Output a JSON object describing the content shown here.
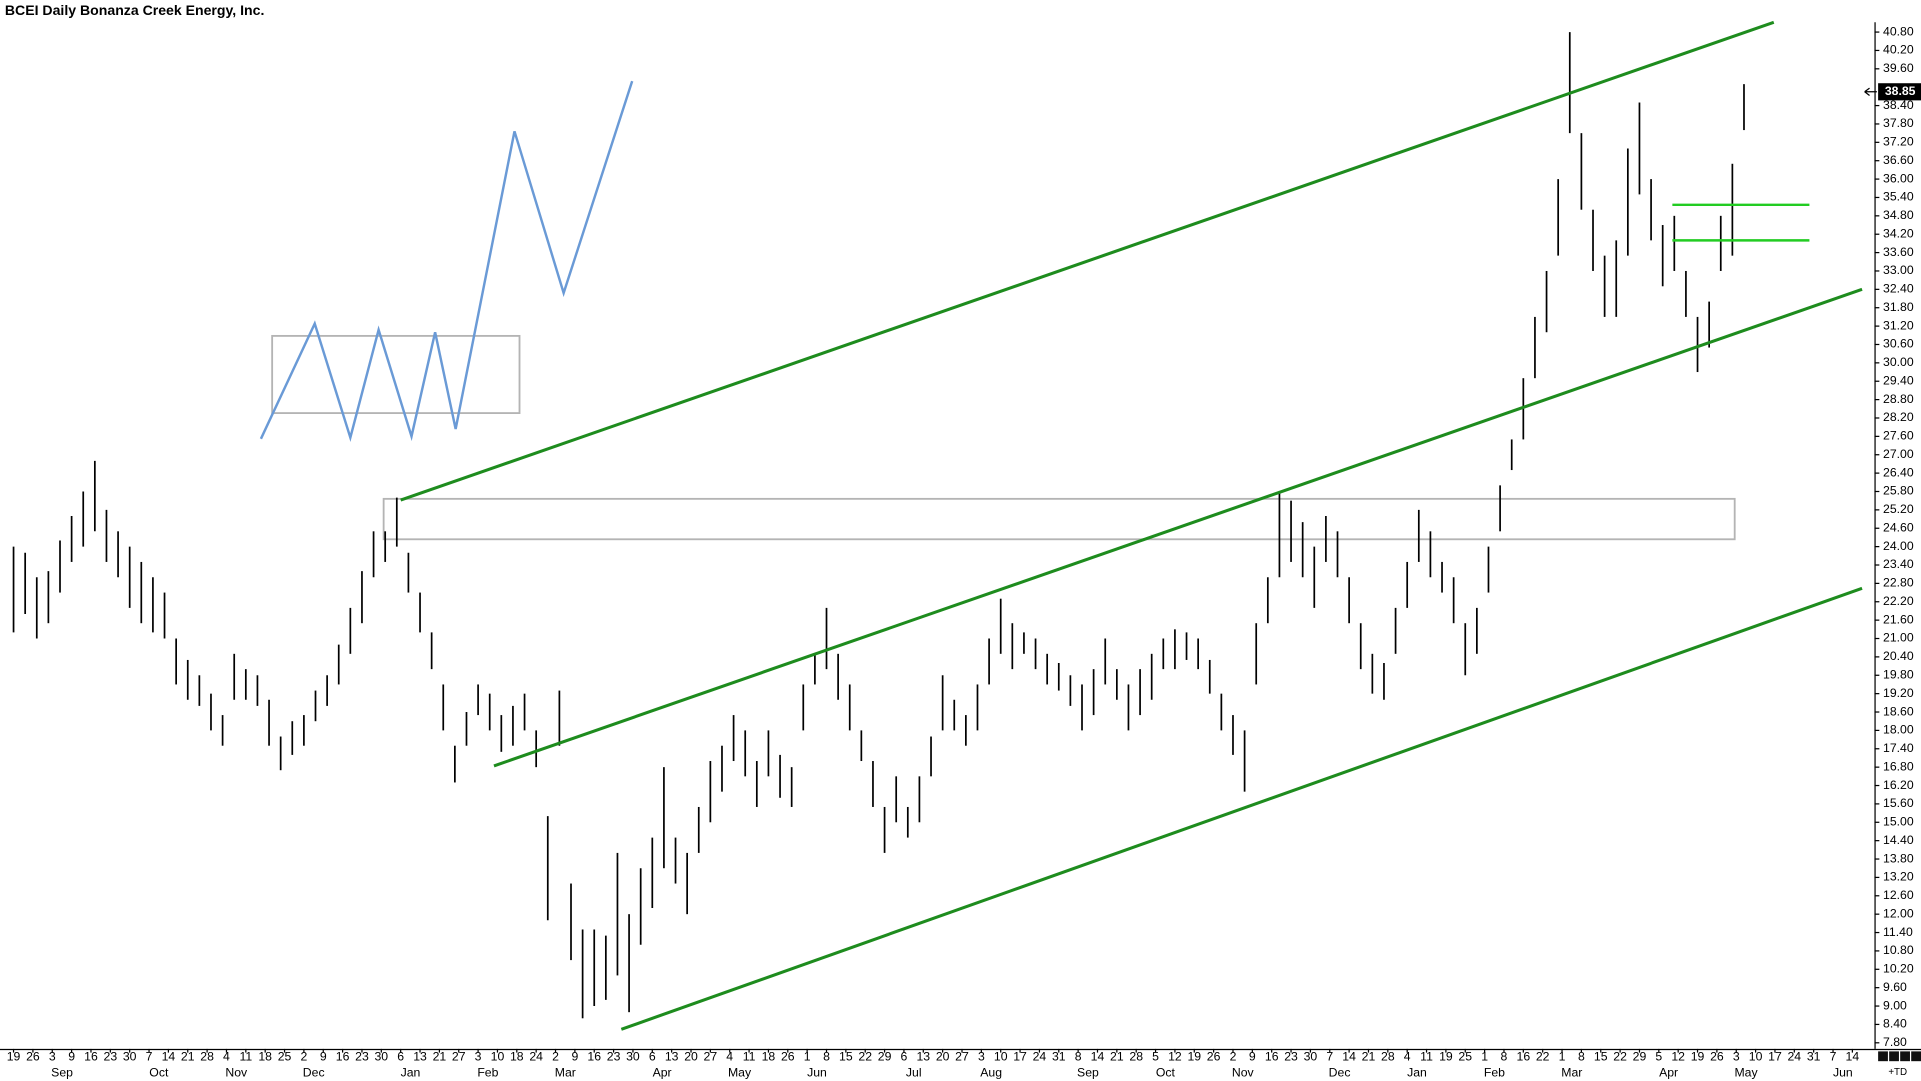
{
  "chart_data": {
    "type": "range_bar",
    "title": "BCEI Daily Bonanza Creek Energy, Inc.",
    "color": "#000000",
    "last_price": 38.85,
    "corner_label": "+TD",
    "xlim": [
      -3.5,
      480.7
    ],
    "ylim": [
      7.6,
      41.3
    ],
    "yticks": [
      {
        "value": 7.8,
        "label": "7.80"
      },
      {
        "value": 8.4,
        "label": "8.40"
      },
      {
        "value": 9,
        "label": "9.00"
      },
      {
        "value": 9.6,
        "label": "9.60"
      },
      {
        "value": 10.2,
        "label": "10.20"
      },
      {
        "value": 10.8,
        "label": "10.80"
      },
      {
        "value": 11.4,
        "label": "11.40"
      },
      {
        "value": 12,
        "label": "12.00"
      },
      {
        "value": 12.6,
        "label": "12.60"
      },
      {
        "value": 13.2,
        "label": "13.20"
      },
      {
        "value": 13.8,
        "label": "13.80"
      },
      {
        "value": 14.4,
        "label": "14.40"
      },
      {
        "value": 15,
        "label": "15.00"
      },
      {
        "value": 15.6,
        "label": "15.60"
      },
      {
        "value": 16.2,
        "label": "16.20"
      },
      {
        "value": 16.8,
        "label": "16.80"
      },
      {
        "value": 17.4,
        "label": "17.40"
      },
      {
        "value": 18,
        "label": "18.00"
      },
      {
        "value": 18.6,
        "label": "18.60"
      },
      {
        "value": 19.2,
        "label": "19.20"
      },
      {
        "value": 19.8,
        "label": "19.80"
      },
      {
        "value": 20.4,
        "label": "20.40"
      },
      {
        "value": 21,
        "label": "21.00"
      },
      {
        "value": 21.6,
        "label": "21.60"
      },
      {
        "value": 22.2,
        "label": "22.20"
      },
      {
        "value": 22.8,
        "label": "22.80"
      },
      {
        "value": 23.4,
        "label": "23.40"
      },
      {
        "value": 24,
        "label": "24.00"
      },
      {
        "value": 24.6,
        "label": "24.60"
      },
      {
        "value": 25.2,
        "label": "25.20"
      },
      {
        "value": 25.8,
        "label": "25.80"
      },
      {
        "value": 26.4,
        "label": "26.40"
      },
      {
        "value": 27,
        "label": "27.00"
      },
      {
        "value": 27.6,
        "label": "27.60"
      },
      {
        "value": 28.2,
        "label": "28.20"
      },
      {
        "value": 28.8,
        "label": "28.80"
      },
      {
        "value": 29.4,
        "label": "29.40"
      },
      {
        "value": 30,
        "label": "30.00"
      },
      {
        "value": 30.6,
        "label": "30.60"
      },
      {
        "value": 31.2,
        "label": "31.20"
      },
      {
        "value": 31.8,
        "label": "31.80"
      },
      {
        "value": 32.4,
        "label": "32.40"
      },
      {
        "value": 33,
        "label": "33.00"
      },
      {
        "value": 33.6,
        "label": "33.60"
      },
      {
        "value": 34.2,
        "label": "34.20"
      },
      {
        "value": 34.8,
        "label": "34.80"
      },
      {
        "value": 35.4,
        "label": "35.40"
      },
      {
        "value": 36,
        "label": "36.00"
      },
      {
        "value": 36.6,
        "label": "36.60"
      },
      {
        "value": 37.2,
        "label": "37.20"
      },
      {
        "value": 37.8,
        "label": "37.80"
      },
      {
        "value": 38.4,
        "label": "38.40"
      },
      {
        "value": 39.6,
        "label": "39.60"
      },
      {
        "value": 40.2,
        "label": "40.20"
      },
      {
        "value": 40.8,
        "label": "40.80"
      }
    ],
    "xticks": [
      {
        "value": 0,
        "label": "19"
      },
      {
        "value": 5,
        "label": "26"
      },
      {
        "value": 10,
        "label": "3"
      },
      {
        "value": 15,
        "label": "9"
      },
      {
        "value": 20,
        "label": "16"
      },
      {
        "value": 25,
        "label": "23"
      },
      {
        "value": 30,
        "label": "30"
      },
      {
        "value": 35,
        "label": "7"
      },
      {
        "value": 40,
        "label": "14"
      },
      {
        "value": 45,
        "label": "21"
      },
      {
        "value": 50,
        "label": "28"
      },
      {
        "value": 55,
        "label": "4"
      },
      {
        "value": 60,
        "label": "11"
      },
      {
        "value": 65,
        "label": "18"
      },
      {
        "value": 70,
        "label": "25"
      },
      {
        "value": 75,
        "label": "2"
      },
      {
        "value": 80,
        "label": "9"
      },
      {
        "value": 85,
        "label": "16"
      },
      {
        "value": 90,
        "label": "23"
      },
      {
        "value": 95,
        "label": "30"
      },
      {
        "value": 100,
        "label": "6"
      },
      {
        "value": 105,
        "label": "13"
      },
      {
        "value": 110,
        "label": "21"
      },
      {
        "value": 115,
        "label": "27"
      },
      {
        "value": 120,
        "label": "3"
      },
      {
        "value": 125,
        "label": "10"
      },
      {
        "value": 130,
        "label": "18"
      },
      {
        "value": 135,
        "label": "24"
      },
      {
        "value": 140,
        "label": "2"
      },
      {
        "value": 145,
        "label": "9"
      },
      {
        "value": 150,
        "label": "16"
      },
      {
        "value": 155,
        "label": "23"
      },
      {
        "value": 160,
        "label": "30"
      },
      {
        "value": 165,
        "label": "6"
      },
      {
        "value": 170,
        "label": "13"
      },
      {
        "value": 175,
        "label": "20"
      },
      {
        "value": 180,
        "label": "27"
      },
      {
        "value": 185,
        "label": "4"
      },
      {
        "value": 190,
        "label": "11"
      },
      {
        "value": 195,
        "label": "18"
      },
      {
        "value": 200,
        "label": "26"
      },
      {
        "value": 205,
        "label": "1"
      },
      {
        "value": 210,
        "label": "8"
      },
      {
        "value": 215,
        "label": "15"
      },
      {
        "value": 220,
        "label": "22"
      },
      {
        "value": 225,
        "label": "29"
      },
      {
        "value": 230,
        "label": "6"
      },
      {
        "value": 235,
        "label": "13"
      },
      {
        "value": 240,
        "label": "20"
      },
      {
        "value": 245,
        "label": "27"
      },
      {
        "value": 250,
        "label": "3"
      },
      {
        "value": 255,
        "label": "10"
      },
      {
        "value": 260,
        "label": "17"
      },
      {
        "value": 265,
        "label": "24"
      },
      {
        "value": 270,
        "label": "31"
      },
      {
        "value": 275,
        "label": "8"
      },
      {
        "value": 280,
        "label": "14"
      },
      {
        "value": 285,
        "label": "21"
      },
      {
        "value": 290,
        "label": "28"
      },
      {
        "value": 295,
        "label": "5"
      },
      {
        "value": 300,
        "label": "12"
      },
      {
        "value": 305,
        "label": "19"
      },
      {
        "value": 310,
        "label": "26"
      },
      {
        "value": 315,
        "label": "2"
      },
      {
        "value": 320,
        "label": "9"
      },
      {
        "value": 325,
        "label": "16"
      },
      {
        "value": 330,
        "label": "23"
      },
      {
        "value": 335,
        "label": "30"
      },
      {
        "value": 340,
        "label": "7"
      },
      {
        "value": 345,
        "label": "14"
      },
      {
        "value": 350,
        "label": "21"
      },
      {
        "value": 355,
        "label": "28"
      },
      {
        "value": 360,
        "label": "4"
      },
      {
        "value": 365,
        "label": "11"
      },
      {
        "value": 370,
        "label": "19"
      },
      {
        "value": 375,
        "label": "25"
      },
      {
        "value": 380,
        "label": "1"
      },
      {
        "value": 385,
        "label": "8"
      },
      {
        "value": 390,
        "label": "16"
      },
      {
        "value": 395,
        "label": "22"
      },
      {
        "value": 400,
        "label": "1"
      },
      {
        "value": 405,
        "label": "8"
      },
      {
        "value": 410,
        "label": "15"
      },
      {
        "value": 415,
        "label": "22"
      },
      {
        "value": 420,
        "label": "29"
      },
      {
        "value": 425,
        "label": "5"
      },
      {
        "value": 430,
        "label": "12"
      },
      {
        "value": 435,
        "label": "19"
      },
      {
        "value": 440,
        "label": "26"
      },
      {
        "value": 445,
        "label": "3"
      },
      {
        "value": 450,
        "label": "10"
      },
      {
        "value": 455,
        "label": "17"
      },
      {
        "value": 460,
        "label": "24"
      },
      {
        "value": 465,
        "label": "31"
      },
      {
        "value": 470,
        "label": "7"
      },
      {
        "value": 475,
        "label": "14"
      }
    ],
    "month_ticks": [
      {
        "value": 10,
        "label": "Sep"
      },
      {
        "value": 35,
        "label": "Oct"
      },
      {
        "value": 55,
        "label": "Nov"
      },
      {
        "value": 75,
        "label": "Dec"
      },
      {
        "value": 100,
        "label": "Jan"
      },
      {
        "value": 120,
        "label": "Feb"
      },
      {
        "value": 140,
        "label": "Mar"
      },
      {
        "value": 165,
        "label": "Apr"
      },
      {
        "value": 185,
        "label": "May"
      },
      {
        "value": 205,
        "label": "Jun"
      },
      {
        "value": 230,
        "label": "Jul"
      },
      {
        "value": 250,
        "label": "Aug"
      },
      {
        "value": 275,
        "label": "Sep"
      },
      {
        "value": 295,
        "label": "Oct"
      },
      {
        "value": 315,
        "label": "Nov"
      },
      {
        "value": 340,
        "label": "Dec"
      },
      {
        "value": 360,
        "label": "Jan"
      },
      {
        "value": 380,
        "label": "Feb"
      },
      {
        "value": 400,
        "label": "Mar"
      },
      {
        "value": 425,
        "label": "Apr"
      },
      {
        "value": 445,
        "label": "May"
      },
      {
        "value": 470,
        "label": "Jun"
      }
    ],
    "bars": {
      "x": [
        0,
        3,
        6,
        9,
        12,
        15,
        18,
        21,
        24,
        27,
        30,
        33,
        36,
        39,
        42,
        45,
        48,
        51,
        54,
        57,
        60,
        63,
        66,
        69,
        72,
        75,
        78,
        81,
        84,
        87,
        90,
        93,
        96,
        99,
        102,
        105,
        108,
        111,
        114,
        117,
        120,
        123,
        126,
        129,
        132,
        135,
        138,
        141,
        144,
        147,
        150,
        153,
        156,
        159,
        162,
        165,
        168,
        171,
        174,
        177,
        180,
        183,
        186,
        189,
        192,
        195,
        198,
        201,
        204,
        207,
        210,
        213,
        216,
        219,
        222,
        225,
        228,
        231,
        234,
        237,
        240,
        243,
        246,
        249,
        252,
        255,
        258,
        261,
        264,
        267,
        270,
        273,
        276,
        279,
        282,
        285,
        288,
        291,
        294,
        297,
        300,
        303,
        306,
        309,
        312,
        315,
        318,
        321,
        324,
        327,
        330,
        333,
        336,
        339,
        342,
        345,
        348,
        351,
        354,
        357,
        360,
        363,
        366,
        369,
        372,
        375,
        378,
        381,
        384,
        387,
        390,
        393,
        396,
        399,
        402,
        405,
        408,
        411,
        414,
        417,
        420,
        423,
        426,
        429,
        432,
        435,
        438,
        441,
        444,
        447
      ],
      "low": [
        21.2,
        21.8,
        21.0,
        21.5,
        22.5,
        23.5,
        24.0,
        24.5,
        23.5,
        23.0,
        22.0,
        21.5,
        21.2,
        21.0,
        19.5,
        19.0,
        18.8,
        18.0,
        17.5,
        19.0,
        19.0,
        18.8,
        17.5,
        16.7,
        17.2,
        17.5,
        18.3,
        18.8,
        19.5,
        20.5,
        21.5,
        23.0,
        23.5,
        24.0,
        22.5,
        21.2,
        20.0,
        18.0,
        16.3,
        17.5,
        18.5,
        18.0,
        17.3,
        17.5,
        18.0,
        16.8,
        11.8,
        17.5,
        10.5,
        8.6,
        9.0,
        9.2,
        10.0,
        8.8,
        11.0,
        12.2,
        13.5,
        13.0,
        12.0,
        14.0,
        15.0,
        16.0,
        17.0,
        16.5,
        15.5,
        16.5,
        15.8,
        15.5,
        18.0,
        19.5,
        20.0,
        19.0,
        18.0,
        17.0,
        15.5,
        14.0,
        15.0,
        14.5,
        15.0,
        16.5,
        18.0,
        18.0,
        17.5,
        18.0,
        19.5,
        20.5,
        20.0,
        20.5,
        20.0,
        19.5,
        19.3,
        18.8,
        18.0,
        18.5,
        19.5,
        19.0,
        18.0,
        18.5,
        19.0,
        20.0,
        20.0,
        20.3,
        20.0,
        19.2,
        18.0,
        17.2,
        16.0,
        19.5,
        21.5,
        23.0,
        23.5,
        23.0,
        22.0,
        23.5,
        23.0,
        21.5,
        20.0,
        19.2,
        19.0,
        20.5,
        22.0,
        23.5,
        23.0,
        22.5,
        21.5,
        19.8,
        20.5,
        22.5,
        24.5,
        26.5,
        27.5,
        29.5,
        31.0,
        33.5,
        37.5,
        35.0,
        33.0,
        31.5,
        31.5,
        33.5,
        35.5,
        34.0,
        32.5,
        33.0,
        31.5,
        29.7,
        30.5,
        33.0,
        33.5,
        37.6
      ],
      "high": [
        24.0,
        23.8,
        23.0,
        23.2,
        24.2,
        25.0,
        25.8,
        26.8,
        25.2,
        24.5,
        24.0,
        23.5,
        23.0,
        22.5,
        21.0,
        20.3,
        19.8,
        19.2,
        18.5,
        20.5,
        20.0,
        19.8,
        19.0,
        17.8,
        18.3,
        18.5,
        19.3,
        19.8,
        20.8,
        22.0,
        23.2,
        24.5,
        24.5,
        25.6,
        23.8,
        22.5,
        21.2,
        19.5,
        17.5,
        18.6,
        19.5,
        19.2,
        18.5,
        18.8,
        19.2,
        18.0,
        15.2,
        19.3,
        13.0,
        11.5,
        11.5,
        11.3,
        14.0,
        12.0,
        13.5,
        14.5,
        16.8,
        14.5,
        14.0,
        15.5,
        17.0,
        17.5,
        18.5,
        18.0,
        17.0,
        18.0,
        17.2,
        16.8,
        19.5,
        20.5,
        22.0,
        20.5,
        19.5,
        18.0,
        17.0,
        15.5,
        16.5,
        15.5,
        16.5,
        17.8,
        19.8,
        19.0,
        18.5,
        19.5,
        21.0,
        22.3,
        21.5,
        21.2,
        21.0,
        20.5,
        20.2,
        19.8,
        19.5,
        20.0,
        21.0,
        20.0,
        19.5,
        20.0,
        20.5,
        21.0,
        21.3,
        21.2,
        21.0,
        20.3,
        19.2,
        18.5,
        18.0,
        21.5,
        23.0,
        25.8,
        25.5,
        24.8,
        24.0,
        25.0,
        24.5,
        23.0,
        21.5,
        20.5,
        20.2,
        22.0,
        23.5,
        25.2,
        24.5,
        23.5,
        23.0,
        21.5,
        22.0,
        24.0,
        26.0,
        27.5,
        29.5,
        31.5,
        33.0,
        36.0,
        40.8,
        37.5,
        35.0,
        33.5,
        34.0,
        37.0,
        38.5,
        36.0,
        34.5,
        34.8,
        33.0,
        31.5,
        32.0,
        34.8,
        36.5,
        39.1
      ]
    },
    "lines": [
      {
        "color": "#1e8c1e",
        "width": 2.5,
        "points": [
          [
            100,
            25.52
          ],
          [
            454.7,
            41.12
          ]
        ]
      },
      {
        "color": "#1e8c1e",
        "width": 2.5,
        "points": [
          [
            124.1,
            16.84
          ],
          [
            477.5,
            32.4
          ]
        ]
      },
      {
        "color": "#1e8c1e",
        "width": 2.5,
        "points": [
          [
            157,
            8.24
          ],
          [
            477.5,
            22.64
          ]
        ]
      },
      {
        "color": "#22cc22",
        "width": 2,
        "points": [
          [
            428.5,
            35.16
          ],
          [
            463.9,
            35.16
          ]
        ]
      },
      {
        "color": "#22cc22",
        "width": 2,
        "points": [
          [
            428.5,
            34.0
          ],
          [
            463.9,
            34.0
          ]
        ]
      },
      {
        "color": "#6a9ad6",
        "width": 2,
        "points": [
          [
            63.9,
            27.52
          ],
          [
            77.8,
            31.28
          ],
          [
            87.0,
            27.56
          ],
          [
            94.3,
            31.08
          ],
          [
            102.8,
            27.6
          ],
          [
            108.9,
            31.0
          ],
          [
            114.2,
            27.84
          ],
          [
            129.4,
            37.56
          ],
          [
            142.1,
            32.28
          ],
          [
            159.8,
            39.2
          ]
        ]
      }
    ],
    "boxes": [
      {
        "color": "#b4b4b4",
        "x": [
          95.6,
          444.6
        ],
        "y": [
          24.24,
          25.56
        ]
      },
      {
        "color": "#b4b4b4",
        "x": [
          66.8,
          130.7
        ],
        "y": [
          28.36,
          30.88
        ]
      }
    ]
  }
}
